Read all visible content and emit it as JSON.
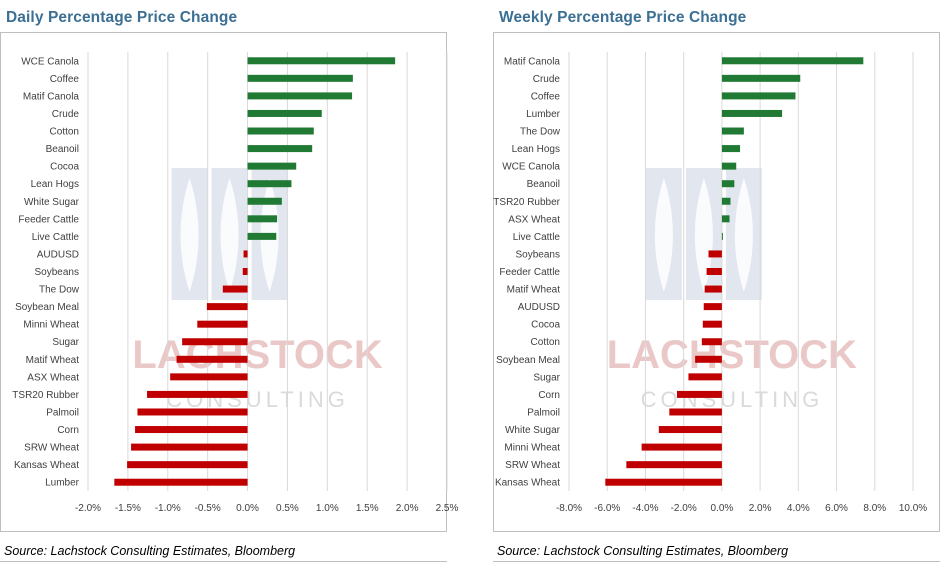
{
  "colors": {
    "positive": "#217a34",
    "negative": "#c00000",
    "title": "#3b6f93",
    "grid": "#d9d9d9"
  },
  "watermark": {
    "line1": "LACHSTOCK",
    "line2": "CONSULTING"
  },
  "chart_data": [
    {
      "type": "bar",
      "orientation": "horizontal",
      "title": "Daily Percentage Price Change",
      "source": "Source: Lachstock Consulting Estimates, Bloomberg",
      "categories": [
        "WCE Canola",
        "Coffee",
        "Matif Canola",
        "Crude",
        "Cotton",
        "Beanoil",
        "Cocoa",
        "Lean Hogs",
        "White Sugar",
        "Feeder Cattle",
        "Live Cattle",
        "AUDUSD",
        "Soybeans",
        "The Dow",
        "Soybean Meal",
        "Minni Wheat",
        "Sugar",
        "Matif Wheat",
        "ASX Wheat",
        "TSR20 Rubber",
        "Palmoil",
        "Corn",
        "SRW Wheat",
        "Kansas Wheat",
        "Lumber"
      ],
      "values": [
        1.85,
        1.32,
        1.31,
        0.93,
        0.83,
        0.81,
        0.61,
        0.55,
        0.43,
        0.37,
        0.36,
        -0.05,
        -0.06,
        -0.31,
        -0.51,
        -0.63,
        -0.82,
        -0.89,
        -0.97,
        -1.26,
        -1.38,
        -1.41,
        -1.46,
        -1.51,
        -1.67
      ],
      "xlim": [
        -2.0,
        2.5
      ],
      "xticks": [
        -2.0,
        -1.5,
        -1.0,
        -0.5,
        0.0,
        0.5,
        1.0,
        1.5,
        2.0,
        2.5
      ],
      "xtick_labels": [
        "-2.0%",
        "-1.5%",
        "-1.0%",
        "-0.5%",
        "0.0%",
        "0.5%",
        "1.0%",
        "1.5%",
        "2.0%",
        "2.5%"
      ],
      "grid": true
    },
    {
      "type": "bar",
      "orientation": "horizontal",
      "title": "Weekly Percentage Price Change",
      "source": "Source: Lachstock Consulting Estimates, Bloomberg",
      "categories": [
        "Matif Canola",
        "Crude",
        "Coffee",
        "Lumber",
        "The Dow",
        "Lean Hogs",
        "WCE Canola",
        "Beanoil",
        "TSR20 Rubber",
        "ASX Wheat",
        "Live Cattle",
        "Soybeans",
        "Feeder Cattle",
        "Matif Wheat",
        "AUDUSD",
        "Cocoa",
        "Cotton",
        "Soybean Meal",
        "Sugar",
        "Corn",
        "Palmoil",
        "White Sugar",
        "Minni Wheat",
        "SRW Wheat",
        "Kansas Wheat"
      ],
      "values": [
        7.4,
        4.1,
        3.85,
        3.15,
        1.15,
        0.95,
        0.75,
        0.65,
        0.45,
        0.4,
        0.05,
        -0.7,
        -0.8,
        -0.9,
        -0.95,
        -1.0,
        -1.05,
        -1.4,
        -1.75,
        -2.35,
        -2.75,
        -3.3,
        -4.2,
        -5.0,
        -6.1
      ],
      "xlim": [
        -8.0,
        10.0
      ],
      "xticks": [
        -8,
        -6,
        -4,
        -2,
        0,
        2,
        4,
        6,
        8,
        10
      ],
      "xtick_labels": [
        "-8.0%",
        "-6.0%",
        "-4.0%",
        "-2.0%",
        "0.0%",
        "2.0%",
        "4.0%",
        "6.0%",
        "8.0%",
        "10.0%"
      ],
      "grid": true
    }
  ]
}
